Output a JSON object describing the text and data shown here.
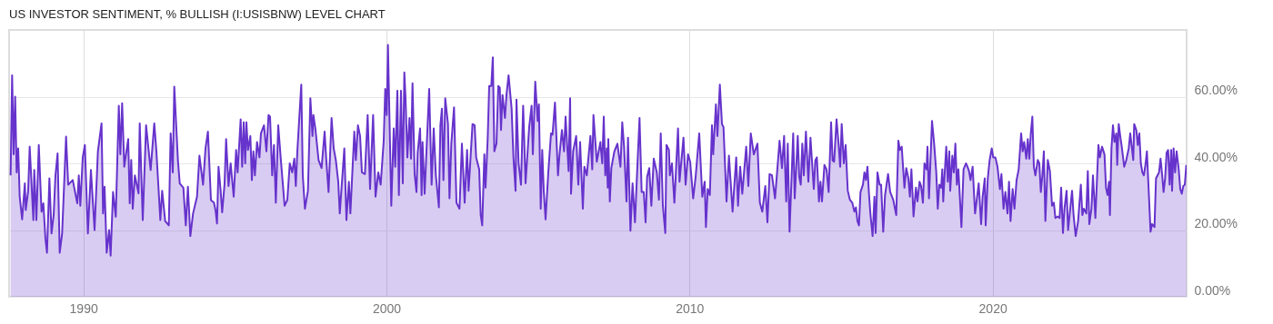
{
  "chart_data": {
    "type": "area",
    "title": "US INVESTOR SENTIMENT, % BULLISH (I:USISBNW) LEVEL CHART",
    "x": [
      1987.6,
      1987.65,
      1987.7,
      1987.75,
      1987.8,
      1987.85,
      1987.9,
      1987.98,
      1988.07,
      1988.1,
      1988.18,
      1988.23,
      1988.35,
      1988.38,
      1988.45,
      1988.53,
      1988.62,
      1988.68,
      1988.75,
      1988.8,
      1988.88,
      1988.95,
      1989.02,
      1989.08,
      1989.15,
      1989.22,
      1989.3,
      1989.43,
      1989.5,
      1989.65,
      1989.8,
      1989.85,
      1989.9,
      1989.98,
      1990.05,
      1990.15,
      1990.25,
      1990.37,
      1990.48,
      1990.6,
      1990.65,
      1990.7,
      1990.77,
      1990.85,
      1990.9,
      1990.98,
      1991.07,
      1991.17,
      1991.22,
      1991.28,
      1991.35,
      1991.48,
      1991.53,
      1991.58,
      1991.63,
      1991.7,
      1991.82,
      1991.86,
      1991.96,
      1992.07,
      1992.22,
      1992.34,
      1992.41,
      1992.54,
      1992.6,
      1992.7,
      1992.82,
      1992.88,
      1992.95,
      1993.0,
      1993.12,
      1993.18,
      1993.3,
      1993.38,
      1993.45,
      1993.53,
      1993.62,
      1993.75,
      1993.83,
      1993.95,
      1994.03,
      1994.11,
      1994.21,
      1994.31,
      1994.36,
      1994.41,
      1994.46,
      1994.53,
      1994.58,
      1994.66,
      1994.71,
      1994.79,
      1994.86,
      1994.96,
      1995.04,
      1995.09,
      1995.19,
      1995.24,
      1995.29,
      1995.34,
      1995.38,
      1995.43,
      1995.51,
      1995.56,
      1995.61,
      1995.66,
      1995.73,
      1995.81,
      1995.86,
      1995.96,
      1996.04,
      1996.11,
      1996.16,
      1996.23,
      1996.29,
      1996.35,
      1996.43,
      1996.51,
      1996.64,
      1996.73,
      1996.81,
      1996.89,
      1996.96,
      1997.01,
      1997.06,
      1997.11,
      1997.19,
      1997.24,
      1997.31,
      1997.41,
      1997.49,
      1997.56,
      1997.59,
      1997.66,
      1997.76,
      1997.86,
      1997.96,
      1998.01,
      1998.09,
      1998.19,
      1998.26,
      1998.33,
      1998.41,
      1998.46,
      1998.61,
      1998.68,
      1998.76,
      1998.81,
      1998.94,
      1998.99,
      1999.06,
      1999.13,
      1999.19,
      1999.29,
      1999.38,
      1999.46,
      1999.56,
      1999.64,
      1999.73,
      1999.81,
      1999.91,
      1999.96,
      2000.01,
      2000.05,
      2000.16,
      2000.24,
      2000.29,
      2000.36,
      2000.41,
      2000.48,
      2000.54,
      2000.59,
      2000.63,
      2000.69,
      2000.76,
      2000.81,
      2000.86,
      2000.93,
      2000.99,
      2001.03,
      2001.11,
      2001.16,
      2001.19,
      2001.26,
      2001.41,
      2001.49,
      2001.56,
      2001.63,
      2001.73,
      2001.78,
      2001.83,
      2001.88,
      2001.94,
      2002.03,
      2002.08,
      2002.14,
      2002.23,
      2002.31,
      2002.41,
      2002.49,
      2002.58,
      2002.66,
      2002.71,
      2002.84,
      2002.91,
      2002.96,
      2003.06,
      2003.11,
      2003.16,
      2003.23,
      2003.27,
      2003.34,
      2003.39,
      2003.46,
      2003.51,
      2003.56,
      2003.63,
      2003.69,
      2003.74,
      2003.78,
      2003.83,
      2003.91,
      2003.96,
      2004.03,
      2004.13,
      2004.19,
      2004.26,
      2004.29,
      2004.36,
      2004.44,
      2004.51,
      2004.59,
      2004.71,
      2004.79,
      2004.83,
      2004.91,
      2004.99,
      2005.03,
      2005.09,
      2005.14,
      2005.19,
      2005.25,
      2005.34,
      2005.43,
      2005.48,
      2005.56,
      2005.66,
      2005.71,
      2005.79,
      2005.86,
      2005.91,
      2006.01,
      2006.06,
      2006.09,
      2006.16,
      2006.26,
      2006.33,
      2006.39,
      2006.48,
      2006.53,
      2006.61,
      2006.73,
      2006.79,
      2006.83,
      2006.94,
      2007.06,
      2007.07,
      2007.12,
      2007.17,
      2007.22,
      2007.27,
      2007.3,
      2007.32,
      2007.37,
      2007.42,
      2007.52,
      2007.62,
      2007.72,
      2007.78,
      2007.84,
      2007.92,
      2007.97,
      2008.05,
      2008.12,
      2008.2,
      2008.27,
      2008.35,
      2008.42,
      2008.49,
      2008.55,
      2008.6,
      2008.67,
      2008.74,
      2008.82,
      2008.92,
      2008.99,
      2009.05,
      2009.12,
      2009.2,
      2009.24,
      2009.32,
      2009.35,
      2009.42,
      2009.5,
      2009.62,
      2009.67,
      2009.8,
      2009.87,
      2009.95,
      2010.02,
      2010.12,
      2010.2,
      2010.32,
      2010.42,
      2010.5,
      2010.54,
      2010.6,
      2010.67,
      2010.74,
      2010.78,
      2010.87,
      2010.92,
      2011.0,
      2011.07,
      2011.12,
      2011.22,
      2011.3,
      2011.42,
      2011.54,
      2011.6,
      2011.67,
      2011.74,
      2011.87,
      2011.94,
      2012.02,
      2012.12,
      2012.24,
      2012.32,
      2012.4,
      2012.5,
      2012.57,
      2012.64,
      2012.72,
      2012.82,
      2012.9,
      2012.97,
      2013.05,
      2013.12,
      2013.19,
      2013.24,
      2013.3,
      2013.42,
      2013.47,
      2013.57,
      2013.62,
      2013.67,
      2013.72,
      2013.77,
      2013.84,
      2013.92,
      2013.99,
      2014.1,
      2014.15,
      2014.2,
      2014.27,
      2014.32,
      2014.37,
      2014.45,
      2014.52,
      2014.59,
      2014.67,
      2014.72,
      2014.77,
      2014.85,
      2014.92,
      2014.97,
      2015.02,
      2015.09,
      2015.15,
      2015.22,
      2015.29,
      2015.37,
      2015.44,
      2015.49,
      2015.54,
      2015.59,
      2015.64,
      2015.72,
      2015.77,
      2015.82,
      2015.87,
      2015.92,
      2015.97,
      2016.04,
      2016.1,
      2016.14,
      2016.2,
      2016.27,
      2016.32,
      2016.39,
      2016.45,
      2016.55,
      2016.62,
      2016.72,
      2016.82,
      2016.89,
      2016.94,
      2017.0,
      2017.09,
      2017.15,
      2017.22,
      2017.27,
      2017.32,
      2017.39,
      2017.47,
      2017.52,
      2017.59,
      2017.64,
      2017.7,
      2017.75,
      2017.82,
      2017.85,
      2017.9,
      2018.0,
      2018.07,
      2018.14,
      2018.19,
      2018.24,
      2018.3,
      2018.34,
      2018.37,
      2018.42,
      2018.47,
      2018.52,
      2018.57,
      2018.6,
      2018.67,
      2018.72,
      2018.77,
      2018.82,
      2018.87,
      2018.97,
      2019.04,
      2019.12,
      2019.17,
      2019.22,
      2019.27,
      2019.34,
      2019.42,
      2019.47,
      2019.54,
      2019.62,
      2019.67,
      2019.74,
      2019.77,
      2019.84,
      2019.9,
      2019.97,
      2020.02,
      2020.09,
      2020.16,
      2020.24,
      2020.29,
      2020.36,
      2020.42,
      2020.49,
      2020.54,
      2020.59,
      2020.66,
      2020.72,
      2020.79,
      2020.86,
      2020.94,
      2020.99,
      2021.04,
      2021.11,
      2021.16,
      2021.21,
      2021.26,
      2021.31,
      2021.36,
      2021.41,
      2021.49,
      2021.54,
      2021.59,
      2021.64,
      2021.69,
      2021.74,
      2021.82,
      2021.89,
      2021.96,
      2022.02,
      2022.07,
      2022.14,
      2022.21,
      2022.26,
      2022.32,
      2022.37,
      2022.44,
      2022.49,
      2022.56,
      2022.62,
      2022.67,
      2022.74,
      2022.82,
      2022.91,
      2022.96,
      2023.01,
      2023.09,
      2023.14,
      2023.19,
      2023.26,
      2023.31,
      2023.39,
      2023.49,
      2023.54,
      2023.61,
      2023.69,
      2023.74,
      2023.79,
      2023.84,
      2023.87,
      2023.92,
      2023.97,
      2024.02,
      2024.08,
      2024.11,
      2024.16,
      2024.21,
      2024.26,
      2024.34,
      2024.41,
      2024.49,
      2024.54,
      2024.59,
      2024.64,
      2024.67,
      2024.74,
      2024.79,
      2024.84,
      2024.89,
      2024.94,
      2024.99,
      2025.04,
      2025.09,
      2025.14,
      2025.21,
      2025.26,
      2025.34,
      2025.39,
      2025.44,
      2025.49,
      2025.54,
      2025.59,
      2025.64,
      2025.69,
      2025.74,
      2025.79,
      2025.84,
      2025.89,
      2025.92,
      2025.97,
      2026.02,
      2026.07,
      2026.14,
      2026.19,
      2026.24,
      2026.29,
      2026.34,
      2026.39
    ],
    "series": [
      {
        "color": "#6633cc",
        "values": [
          36.4,
          66.4,
          42.7,
          60,
          37.3,
          44.5,
          30,
          23.2,
          34,
          26,
          31.8,
          45,
          23,
          38,
          23,
          45.5,
          25.5,
          28,
          17.3,
          13.2,
          35.5,
          19,
          24.5,
          36.4,
          43,
          13.2,
          19,
          48,
          33.6,
          35,
          28,
          36.4,
          27.3,
          41.8,
          45.5,
          19,
          38,
          20,
          43.6,
          52,
          25,
          33,
          13.2,
          20,
          12.3,
          31.4,
          24,
          57.3,
          42.7,
          58,
          39,
          47.3,
          28,
          41,
          26.4,
          36.4,
          31,
          52,
          23,
          51.4,
          38,
          52,
          43.6,
          23,
          31.8,
          22.7,
          21.4,
          49,
          37.3,
          63,
          41,
          34,
          32.7,
          21.4,
          33,
          18.2,
          25,
          30,
          42.3,
          33.6,
          44.5,
          49.5,
          29,
          28.2,
          26,
          22,
          39,
          31.8,
          25.3,
          34,
          47.3,
          33.2,
          40,
          30,
          44,
          37.3,
          53.2,
          39,
          52.3,
          40,
          52.3,
          44,
          48.2,
          35,
          43.6,
          36.4,
          46.4,
          41.8,
          49,
          51.4,
          43.6,
          54.5,
          54,
          36.4,
          45.5,
          28.2,
          51.4,
          41.8,
          27.3,
          29,
          40,
          37.3,
          41.4,
          33.2,
          43.6,
          51.4,
          63.6,
          36.4,
          26.4,
          31.8,
          59.5,
          48.2,
          54.5,
          50,
          41,
          38.6,
          49.5,
          41.8,
          31.4,
          53.6,
          44.5,
          41,
          34.5,
          25,
          44.5,
          23,
          34.5,
          25,
          49.5,
          41,
          51.4,
          48.2,
          37.3,
          36.8,
          54.5,
          32.3,
          54.5,
          30,
          37.3,
          33.6,
          46.8,
          62.3,
          54.5,
          75.5,
          27.3,
          50.5,
          39,
          61.8,
          30.5,
          61.8,
          34,
          67.3,
          59.5,
          41.8,
          53.6,
          41.4,
          64,
          36.8,
          31.4,
          43.2,
          50.5,
          30.5,
          46.4,
          30.9,
          62.3,
          33.6,
          50.5,
          36.4,
          26.8,
          51.4,
          56.4,
          35,
          59.5,
          51.8,
          29.5,
          45.9,
          56.8,
          28.2,
          26.4,
          45.9,
          28.2,
          44,
          31.8,
          51.8,
          51.4,
          41.8,
          38.2,
          24.5,
          21.4,
          42.7,
          32.7,
          47.3,
          63.2,
          63.2,
          71.8,
          43.6,
          45.9,
          63.2,
          62.7,
          50,
          60.5,
          53.6,
          60.5,
          66.4,
          56.4,
          41.8,
          31.8,
          59.1,
          40,
          33.6,
          57.3,
          34,
          50.9,
          57.3,
          42.7,
          64.5,
          52.7,
          57.7,
          26.4,
          44,
          31.8,
          23.2,
          37.3,
          49,
          48.6,
          58.2,
          36.4,
          42.7,
          50,
          43.6,
          54,
          37.7,
          59.5,
          30.9,
          43.6,
          48.2,
          33.6,
          46.4,
          26.4,
          39,
          36.4,
          48.2,
          38.2,
          54.5,
          40.5,
          46.4,
          45,
          40,
          54,
          36.4,
          44.5,
          32.7,
          47.3,
          28.6,
          38.6,
          43.6,
          45.9,
          39,
          52.3,
          45,
          28.6,
          47.7,
          19.8,
          34,
          22.3,
          37.3,
          53.6,
          31.4,
          31.4,
          22.3,
          35.9,
          38.6,
          27.3,
          41.4,
          37.3,
          29.1,
          49,
          27.3,
          19.1,
          45.5,
          44,
          36.4,
          40,
          28.2,
          50.5,
          34.5,
          47.7,
          33.6,
          42.7,
          40.5,
          29.5,
          35.9,
          49,
          30,
          34.5,
          20.9,
          32.3,
          30.5,
          51.4,
          42.7,
          57.7,
          48.2,
          63.6,
          51.8,
          50.9,
          28.6,
          42.3,
          25.5,
          41.8,
          27.3,
          39,
          30.9,
          45,
          33.2,
          49,
          42.7,
          45.9,
          28.2,
          25.5,
          33.2,
          22.3,
          36.8,
          36.4,
          29.5,
          38.6,
          46.8,
          38.6,
          48.2,
          28.6,
          45.9,
          19.5,
          49,
          29.5,
          48.2,
          35.9,
          33.6,
          45.9,
          36.4,
          49.5,
          34.5,
          47.7,
          32.3,
          40.9,
          41.8,
          28.6,
          34.5,
          28.6,
          39.5,
          38.2,
          31.4,
          52.3,
          40.9,
          40.5,
          53.2,
          45.5,
          39,
          51.8,
          40,
          45.5,
          31.8,
          29.1,
          28.2,
          25.5,
          26.8,
          22.7,
          21.4,
          31.4,
          33.6,
          37.3,
          35,
          39,
          30.9,
          24.5,
          18.2,
          30,
          19.1,
          37.3,
          33.6,
          33.6,
          19.5,
          30.5,
          36.8,
          31.4,
          29.1,
          24.5,
          46.8,
          44,
          45,
          32.7,
          38.6,
          35.5,
          30,
          38.2,
          24.1,
          32.7,
          28.6,
          34.5,
          33.2,
          28.2,
          40,
          38.2,
          45,
          29.5,
          52.7,
          45.9,
          37.3,
          26.4,
          33.6,
          32.7,
          38.2,
          28.6,
          37.3,
          45,
          34.5,
          43.6,
          31.8,
          42.3,
          37.3,
          45.9,
          33.6,
          38.2,
          20.9,
          38.2,
          40,
          39,
          37.7,
          35,
          39,
          25,
          28.6,
          34,
          21.8,
          30,
          35.5,
          21.4,
          35.5,
          40.9,
          44.5,
          41.8,
          41.8,
          39,
          32.3,
          36.8,
          26.4,
          31.4,
          25,
          34.5,
          22.7,
          32.3,
          26.4,
          35,
          38.2,
          49,
          43.6,
          46.4,
          41.4,
          47.3,
          41.4,
          49,
          54,
          39,
          36.4,
          41,
          40,
          31.4,
          36.4,
          43.6,
          22.7,
          41,
          37.7,
          27.3,
          28.2,
          23.6,
          24.1,
          23.6,
          32.7,
          19.1,
          26.4,
          31.8,
          20,
          26.4,
          31.8,
          24.5,
          18.2,
          22.7,
          33.6,
          24.5,
          26.4,
          25,
          37.7,
          21.8,
          26.4,
          36.4,
          23.6,
          45.5,
          41.8,
          45,
          42.7,
          32.7,
          30.5,
          34.5,
          24.5,
          44.5,
          51.4,
          46.4,
          49,
          39.5,
          51.8,
          48.2,
          45,
          39,
          41,
          44.5,
          49,
          45,
          41,
          51.8,
          50,
          45.5,
          49,
          40,
          37.3,
          36.4,
          39.5,
          43.6,
          33.6,
          19.5,
          21.8,
          20.9,
          35.5,
          36.4,
          37.3,
          41.4,
          36.8,
          31.4,
          35.5,
          43.2,
          44,
          33.6,
          44,
          31.8,
          44.5,
          37.3,
          43.6,
          38.2,
          32.3,
          30.9,
          33.2,
          33.6,
          39.5
        ]
      }
    ],
    "xlim": [
      1987.55,
      2026.4
    ],
    "xticks": [
      1990,
      2000,
      2010,
      2020
    ],
    "ylim": [
      0,
      80
    ],
    "yticks": [
      {
        "value": 0,
        "label": "0.00%"
      },
      {
        "value": 20,
        "label": "20.00%"
      },
      {
        "value": 40,
        "label": "40.00%"
      },
      {
        "value": 60,
        "label": "60.00%"
      }
    ],
    "grid": true
  }
}
